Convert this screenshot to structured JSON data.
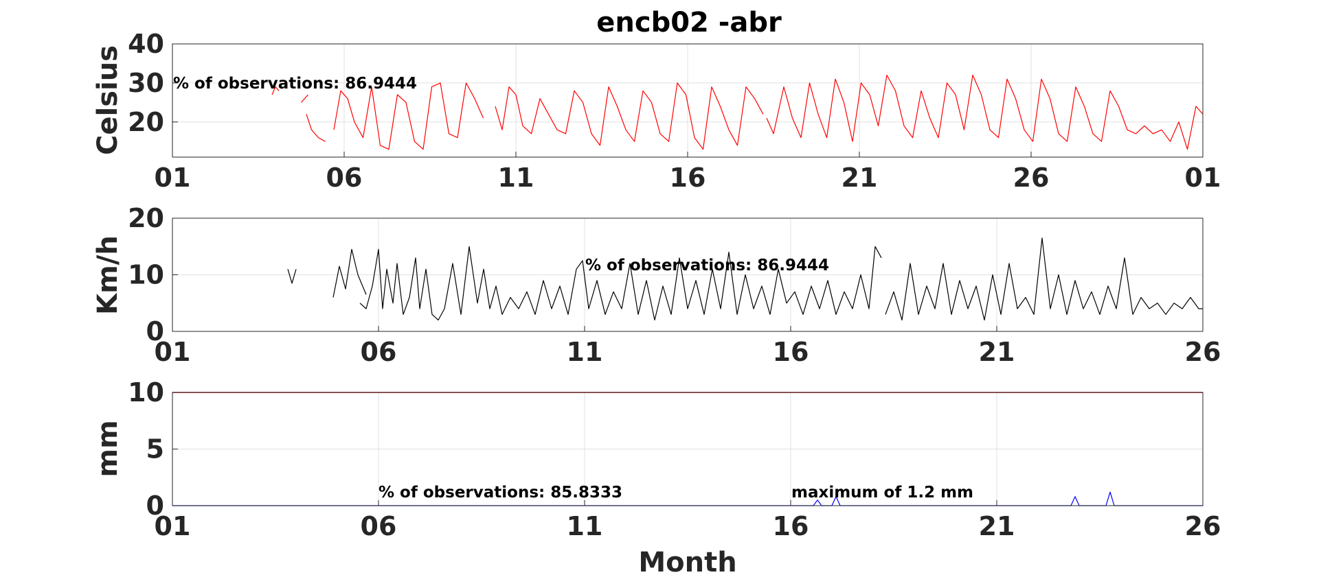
{
  "title": "encb02 -abr",
  "xlabel": "Month",
  "colors": {
    "temperature": "#ff0000",
    "wind": "#000000",
    "rain": "#0000ff",
    "rain_limit": "#cc0000",
    "grid": "#e0e0e0"
  },
  "chart_data": [
    {
      "type": "line",
      "panel": "temperature",
      "ylabel": "Celsius",
      "ylim": [
        11,
        40
      ],
      "yticks": [
        "20",
        "30",
        "40"
      ],
      "xlim": [
        1,
        31
      ],
      "xticks": [
        "01",
        "06",
        "11",
        "16",
        "21",
        "26",
        "01"
      ],
      "annotation": "% of observations: 86.9444",
      "grid": true,
      "series": [
        {
          "x": [
            3.9,
            4.0,
            4.1
          ],
          "y": [
            27,
            29,
            28
          ]
        },
        {
          "x": [
            4.75,
            4.95
          ],
          "y": [
            25,
            27
          ]
        },
        {
          "x": [
            4.9,
            5.05,
            5.25,
            5.45
          ],
          "y": [
            22,
            18,
            16,
            15
          ]
        },
        {
          "x": [
            5.7,
            5.9,
            6.1,
            6.3,
            6.55,
            6.8,
            7.05,
            7.3,
            7.55,
            7.8,
            8.05,
            8.3,
            8.55,
            8.8,
            9.05,
            9.3,
            9.55,
            9.8,
            10.05
          ],
          "y": [
            18,
            28,
            26,
            20,
            16,
            29,
            14,
            13,
            27,
            25,
            15,
            13,
            29,
            30,
            17,
            16,
            30,
            26,
            21
          ]
        },
        {
          "x": [
            10.4,
            10.6,
            10.8,
            11.0,
            11.2,
            11.45,
            11.7,
            11.95,
            12.2,
            12.45,
            12.7,
            12.95,
            13.2,
            13.45,
            13.7,
            13.95,
            14.2,
            14.45,
            14.7,
            14.95,
            15.2,
            15.45,
            15.7,
            15.95,
            16.2,
            16.45,
            16.7,
            16.95,
            17.2,
            17.45,
            17.7,
            17.95,
            18.2
          ],
          "y": [
            24,
            18,
            29,
            27,
            19,
            17,
            26,
            22,
            18,
            17,
            28,
            25,
            17,
            14,
            29,
            24,
            18,
            15,
            28,
            25,
            17,
            15,
            30,
            27,
            16,
            13,
            29,
            24,
            18,
            14,
            29,
            26,
            22
          ]
        },
        {
          "x": [
            18.3,
            18.5,
            18.8,
            19.05,
            19.3,
            19.55,
            19.8,
            20.05,
            20.3,
            20.55,
            20.8,
            21.05,
            21.3,
            21.55,
            21.8,
            22.05,
            22.3,
            22.55,
            22.8,
            23.05,
            23.3,
            23.55,
            23.8,
            24.05,
            24.3,
            24.55,
            24.8,
            25.05,
            25.3,
            25.55,
            25.8,
            26.05,
            26.3,
            26.55,
            26.8,
            27.05,
            27.3,
            27.55,
            27.8,
            28.05,
            28.3,
            28.55,
            28.8,
            29.05,
            29.3,
            29.55,
            29.8,
            30.05,
            30.3,
            30.55,
            30.8,
            31.0
          ],
          "y": [
            21,
            17,
            29,
            21,
            16,
            30,
            22,
            16,
            31,
            25,
            15,
            30,
            27,
            19,
            32,
            28,
            19,
            16,
            28,
            21,
            16,
            30,
            27,
            18,
            32,
            27,
            18,
            16,
            31,
            26,
            18,
            15,
            31,
            26,
            17,
            15,
            29,
            24,
            17,
            15,
            28,
            24,
            18,
            17,
            19,
            17,
            18,
            15,
            20,
            13,
            24,
            22
          ]
        }
      ]
    },
    {
      "type": "line",
      "panel": "wind",
      "ylabel": "Km/h",
      "ylim": [
        0,
        20
      ],
      "yticks": [
        "0",
        "10",
        "20"
      ],
      "xlim": [
        1,
        26
      ],
      "xticks": [
        "01",
        "06",
        "11",
        "16",
        "21",
        "26"
      ],
      "annotation": "% of observations: 86.9444",
      "grid": true,
      "series": [
        {
          "x": [
            3.8,
            3.9,
            4.0
          ],
          "y": [
            11,
            8.5,
            11
          ]
        },
        {
          "x": [
            4.9,
            5.05,
            5.2,
            5.35,
            5.5,
            5.7
          ],
          "y": [
            6,
            11.5,
            7.5,
            14.5,
            10,
            6.5
          ]
        },
        {
          "x": [
            5.55,
            5.7,
            5.85,
            6.0,
            6.1,
            6.2,
            6.35,
            6.45,
            6.6,
            6.75,
            6.9,
            7.0,
            7.15,
            7.3,
            7.45,
            7.6,
            7.8,
            8.0,
            8.2,
            8.4,
            8.55,
            8.7,
            8.85,
            9.0,
            9.2,
            9.4,
            9.6,
            9.8,
            10.0,
            10.2,
            10.4,
            10.6,
            10.8,
            10.95,
            11.1,
            11.3,
            11.5,
            11.7,
            11.9,
            12.1,
            12.3,
            12.5,
            12.7,
            12.9,
            13.1,
            13.3,
            13.5,
            13.7,
            13.9,
            14.1,
            14.3,
            14.5,
            14.7,
            14.9,
            15.1,
            15.3,
            15.5,
            15.7,
            15.9,
            16.1,
            16.3,
            16.5,
            16.7,
            16.9,
            17.1,
            17.3,
            17.5,
            17.7,
            17.9,
            18.05,
            18.2
          ],
          "y": [
            5,
            4,
            8,
            14.5,
            4,
            11,
            5,
            12,
            3,
            6,
            13,
            4,
            11,
            3,
            2,
            4,
            12,
            3,
            15,
            5,
            11,
            4,
            8,
            3,
            6,
            4,
            7,
            3,
            9,
            4,
            8,
            3,
            11,
            12.5,
            4,
            9,
            3,
            7,
            4,
            12,
            3,
            9,
            2,
            8,
            3,
            13,
            4,
            9,
            3,
            11,
            4,
            14,
            3,
            10,
            4,
            8,
            3,
            11,
            5,
            7,
            3,
            8,
            4,
            9,
            3,
            7,
            4,
            10,
            4,
            15,
            13
          ]
        },
        {
          "x": [
            18.3,
            18.5,
            18.7,
            18.9,
            19.1,
            19.3,
            19.5,
            19.7,
            19.9,
            20.1,
            20.3,
            20.5,
            20.7,
            20.9,
            21.1,
            21.3,
            21.5,
            21.7,
            21.9,
            22.1,
            22.3,
            22.5,
            22.7,
            22.9,
            23.1,
            23.3,
            23.5,
            23.7,
            23.9,
            24.1,
            24.3,
            24.5,
            24.7,
            24.9,
            25.1,
            25.3,
            25.5,
            25.7,
            25.9,
            26.0
          ],
          "y": [
            3,
            7,
            2,
            12,
            3,
            8,
            4,
            12,
            3,
            9,
            4,
            8,
            2,
            10,
            3,
            12,
            4,
            6,
            3,
            16.5,
            4,
            10,
            3,
            9,
            4,
            7,
            3,
            8,
            4,
            13,
            3,
            6,
            4,
            5,
            3,
            5,
            4,
            6,
            4,
            4
          ]
        }
      ]
    },
    {
      "type": "line",
      "panel": "rain",
      "ylabel": "mm",
      "ylim": [
        0,
        10
      ],
      "yticks": [
        "0",
        "5",
        "10"
      ],
      "xlim": [
        1,
        26
      ],
      "xticks": [
        "01",
        "06",
        "11",
        "16",
        "21",
        "26"
      ],
      "annotation": "% of observations: 85.8333",
      "annotation2": "maximum of 1.2 mm",
      "grid": true,
      "limit_line": 10,
      "series": [
        {
          "x": [
            1.0,
            9.6,
            16.55,
            16.65,
            16.75,
            17.0,
            17.1,
            17.2,
            22.8,
            22.9,
            23.0,
            23.65,
            23.75,
            23.85,
            26.0
          ],
          "y": [
            0,
            0,
            0,
            0.5,
            0,
            0,
            0.8,
            0,
            0,
            0.8,
            0,
            0,
            1.2,
            0,
            0
          ]
        }
      ]
    }
  ]
}
